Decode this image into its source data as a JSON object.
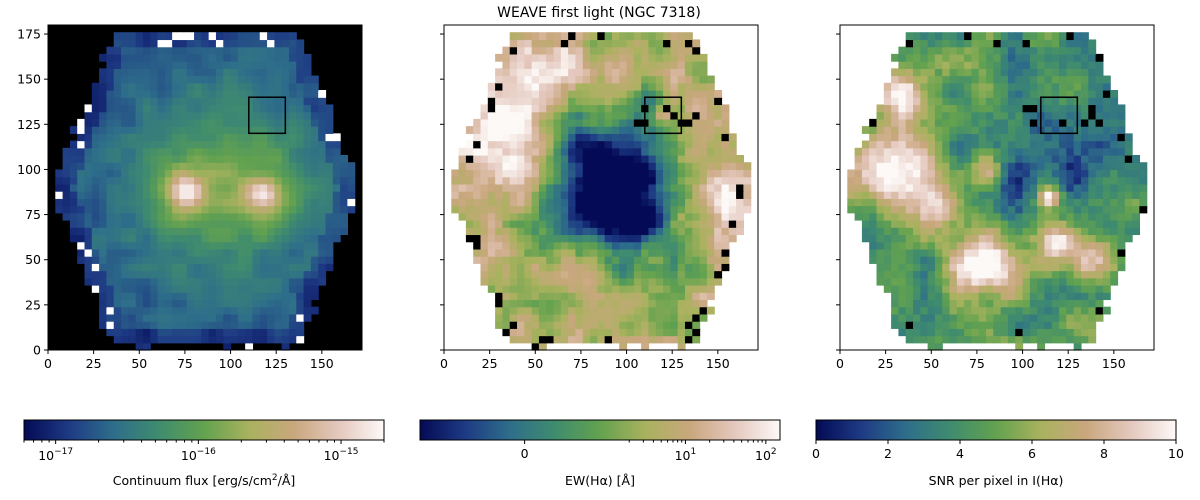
{
  "title": "WEAVE first light (NGC 7318)",
  "chart_data": [
    {
      "type": "heatmap",
      "panel": "left",
      "quantity": "continuum",
      "xlim": [
        0,
        172
      ],
      "ylim": [
        0,
        180
      ],
      "xticks": [
        0,
        25,
        50,
        75,
        100,
        125,
        150
      ],
      "yticks": [
        0,
        25,
        50,
        75,
        100,
        125,
        150,
        175
      ],
      "show_yticklabels": true,
      "background": "#000000",
      "box": {
        "x": [
          110,
          130
        ],
        "y": [
          120,
          140
        ]
      },
      "features": {
        "nuclei": [
          {
            "x": 76,
            "y": 88
          },
          {
            "x": 118,
            "y": 86
          }
        ],
        "bright_knots": [
          {
            "x": 14,
            "y": 135
          },
          {
            "x": 96,
            "y": 10
          }
        ]
      },
      "colorbar": {
        "label": "Continuum flux [erg/s/cm²/Å]",
        "label_parts": {
          "main": "Continuum flux [erg/s/cm",
          "sup": "2",
          "tail": "/Å]"
        },
        "scale": "log",
        "range": [
          6e-18,
          2e-15
        ],
        "ticks": [
          {
            "value": 1e-17,
            "base": "10",
            "exp": "−17"
          },
          {
            "value": 1e-16,
            "base": "10",
            "exp": "−16"
          },
          {
            "value": 1e-15,
            "base": "10",
            "exp": "−15"
          }
        ]
      }
    },
    {
      "type": "heatmap",
      "panel": "middle",
      "quantity": "equivalent width",
      "xlim": [
        0,
        172
      ],
      "ylim": [
        0,
        180
      ],
      "xticks": [
        0,
        25,
        50,
        75,
        100,
        125,
        150
      ],
      "yticks": [
        0,
        25,
        50,
        75,
        100,
        125,
        150,
        175
      ],
      "show_yticklabels": false,
      "background": "#ffffff",
      "box": {
        "x": [
          110,
          130
        ],
        "y": [
          120,
          140
        ]
      },
      "colorbar": {
        "label": "EW(Hα) [Å]",
        "scale": "symlog",
        "range": [
          -2,
          150
        ],
        "ticks": [
          {
            "value": 0,
            "text": "0"
          },
          {
            "value": 10,
            "base": "10",
            "exp": "1"
          },
          {
            "value": 100,
            "base": "10",
            "exp": "2"
          }
        ]
      }
    },
    {
      "type": "heatmap",
      "panel": "right",
      "quantity": "signal-to-noise",
      "xlim": [
        0,
        172
      ],
      "ylim": [
        0,
        180
      ],
      "xticks": [
        0,
        25,
        50,
        75,
        100,
        125,
        150
      ],
      "yticks": [
        0,
        25,
        50,
        75,
        100,
        125,
        150,
        175
      ],
      "show_yticklabels": false,
      "background": "#ffffff",
      "box": {
        "x": [
          110,
          130
        ],
        "y": [
          120,
          140
        ]
      },
      "colorbar": {
        "label": "SNR per pixel in I(Hα)",
        "scale": "linear",
        "range": [
          0,
          10
        ],
        "ticks": [
          {
            "value": 0,
            "text": "0"
          },
          {
            "value": 2,
            "text": "2"
          },
          {
            "value": 4,
            "text": "4"
          },
          {
            "value": 6,
            "text": "6"
          },
          {
            "value": 8,
            "text": "8"
          },
          {
            "value": 10,
            "text": "10"
          }
        ]
      }
    }
  ],
  "colormap": [
    "#040a55",
    "#1e3a84",
    "#2e6e8a",
    "#3f8c6e",
    "#63a24f",
    "#a9b25e",
    "#c9a77e",
    "#e4c8be",
    "#fdf9f7"
  ]
}
